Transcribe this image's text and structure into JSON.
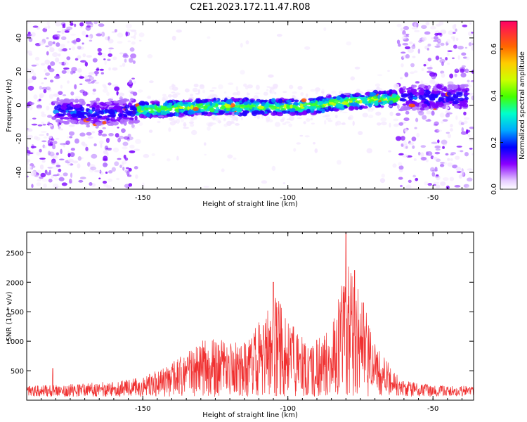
{
  "title": "C2E1.2023.172.11.47.R08",
  "colors": {
    "band_core": "#00d26a",
    "band_outer": "#3a00ff",
    "noise": "#8a2be2",
    "snr_line": "#f03030"
  },
  "chart_data": [
    {
      "type": "heatmap",
      "title": "C2E1.2023.172.11.47.R08",
      "xlabel": "Height of straight line (km)",
      "ylabel": "Frequency (Hz)",
      "xlim": [
        -190,
        -36
      ],
      "ylim": [
        -50,
        50
      ],
      "xticks": [
        -150,
        -100,
        -50
      ],
      "yticks": [
        -40,
        -20,
        0,
        20,
        40
      ],
      "colorbar": {
        "label": "Normalized spectral amplitude",
        "range": [
          0.0,
          0.72
        ],
        "ticks": [
          0.0,
          0.2,
          0.4,
          0.6
        ]
      },
      "band_center_hz": [
        {
          "height_km": -185,
          "hz": -3
        },
        {
          "height_km": -165,
          "hz": -5
        },
        {
          "height_km": -150,
          "hz": -3
        },
        {
          "height_km": -130,
          "hz": -1
        },
        {
          "height_km": -110,
          "hz": -1
        },
        {
          "height_km": -95,
          "hz": -1
        },
        {
          "height_km": -80,
          "hz": 2
        },
        {
          "height_km": -62,
          "hz": 4
        },
        {
          "height_km": -45,
          "hz": 5
        }
      ],
      "clean_region_km": [
        -152,
        -62
      ]
    },
    {
      "type": "line",
      "xlabel": "Height of straight line (km)",
      "ylabel": "SNR (10 * v/v)",
      "xlim": [
        -190,
        -36
      ],
      "ylim": [
        0,
        2850
      ],
      "xticks": [
        -150,
        -100,
        -50
      ],
      "yticks": [
        500,
        1000,
        1500,
        2000,
        2500
      ],
      "series": [
        {
          "envelope": [
            {
              "x": -190,
              "y": 180
            },
            {
              "x": -170,
              "y": 230
            },
            {
              "x": -160,
              "y": 260
            },
            {
              "x": -150,
              "y": 330
            },
            {
              "x": -142,
              "y": 520
            },
            {
              "x": -135,
              "y": 750
            },
            {
              "x": -127,
              "y": 1050
            },
            {
              "x": -120,
              "y": 900
            },
            {
              "x": -112,
              "y": 1150
            },
            {
              "x": -104,
              "y": 1700
            },
            {
              "x": -98,
              "y": 1200
            },
            {
              "x": -92,
              "y": 900
            },
            {
              "x": -85,
              "y": 1200
            },
            {
              "x": -80,
              "y": 2300
            },
            {
              "x": -75,
              "y": 1800
            },
            {
              "x": -70,
              "y": 900
            },
            {
              "x": -65,
              "y": 550
            },
            {
              "x": -61,
              "y": 300
            },
            {
              "x": -50,
              "y": 190
            },
            {
              "x": -36,
              "y": 180
            }
          ],
          "peaks": [
            {
              "x": -181,
              "y": 540
            },
            {
              "x": -105,
              "y": 2000
            },
            {
              "x": -80,
              "y": 2850
            },
            {
              "x": -77,
              "y": 2200
            }
          ]
        }
      ]
    }
  ]
}
